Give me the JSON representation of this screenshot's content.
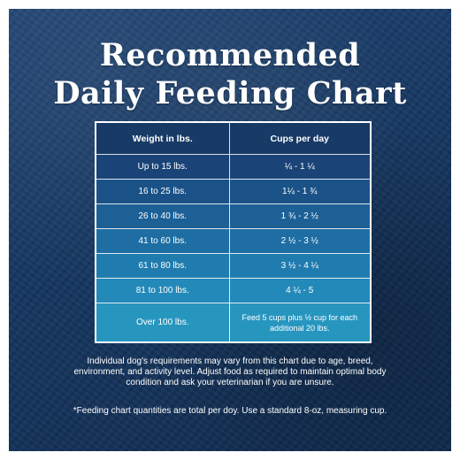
{
  "title": {
    "line1": "Recommended",
    "line2": "Daily Feeding Chart"
  },
  "table": {
    "headers": [
      "Weight in lbs.",
      "Cups per day"
    ],
    "rows": [
      {
        "weight": "Up to 15 lbs.",
        "cups": "¼  - 1 ¼"
      },
      {
        "weight": "16 to 25 lbs.",
        "cups": "1¼  - 1 ¾"
      },
      {
        "weight": "26 to 40 lbs.",
        "cups": "1 ¾  - 2 ½"
      },
      {
        "weight": "41 to 60 lbs.",
        "cups": "2 ½  - 3 ½"
      },
      {
        "weight": "61 to 80 lbs.",
        "cups": "3 ½  - 4 ¼"
      },
      {
        "weight": "81 to 100 lbs.",
        "cups": "4 ¼  - 5"
      },
      {
        "weight": "Over 100 lbs.",
        "cups": "Feed 5 cups plus ½ cup for each additional 20 lbs."
      }
    ],
    "row_colors": [
      "#1a4477",
      "#1a5288",
      "#1c6096",
      "#1e6ea3",
      "#207cae",
      "#2389b8",
      "#2796bf"
    ],
    "header_color": "#173a66"
  },
  "notes": {
    "requirements": "Individual dog's requirements may vary from this chart due to age, breed, environment, and activity level. Adjust food as required to maintain optimal body condition and ask your veterinarian if you are unsure.",
    "measurement": "*Feeding chart quantities are total per doy. Use a standard 8-oz, measuring cup."
  },
  "colors": {
    "background": "#163761",
    "text": "#ffffff"
  }
}
